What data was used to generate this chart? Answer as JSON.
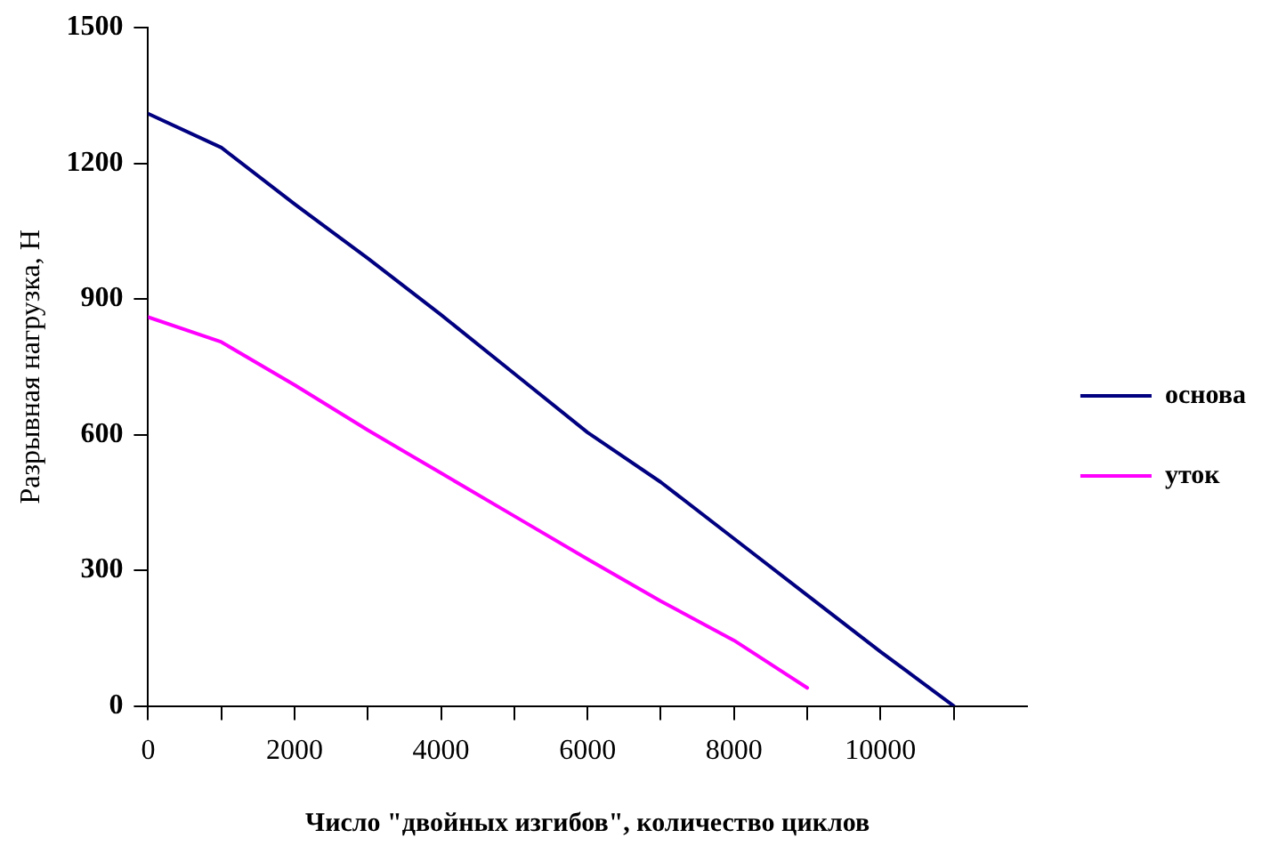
{
  "chart_data": {
    "type": "line",
    "xlabel": "Число \"двойных изгибов\", количество циклов",
    "ylabel": "Разрывная нагрузка, Н",
    "series": [
      {
        "name": "основа",
        "color": "#000080",
        "x": [
          0,
          1000,
          2000,
          3000,
          4000,
          5000,
          6000,
          7000,
          8000,
          9000,
          10000,
          11000
        ],
        "values": [
          1310,
          1235,
          1110,
          990,
          865,
          735,
          605,
          495,
          370,
          245,
          120,
          0
        ]
      },
      {
        "name": "уток",
        "color": "#ff00ff",
        "x": [
          0,
          1000,
          2000,
          3000,
          4000,
          5000,
          6000,
          7000,
          8000,
          9000
        ],
        "values": [
          860,
          805,
          710,
          610,
          515,
          420,
          325,
          232,
          145,
          40
        ]
      }
    ],
    "xlim": [
      0,
      12000
    ],
    "xticks": [
      0,
      {
        "value": 1000,
        "label": null
      },
      2000,
      {
        "value": 3000,
        "label": null
      },
      4000,
      {
        "value": 5000,
        "label": null
      },
      6000,
      {
        "value": 7000,
        "label": null
      },
      8000,
      {
        "value": 9000,
        "label": null
      },
      10000,
      {
        "value": 11000,
        "label": null
      }
    ],
    "ylim": [
      0,
      1500
    ],
    "yticks": [
      0,
      300,
      600,
      900,
      1200,
      1500
    ],
    "grid": false,
    "legend": "right",
    "marker": "none",
    "line_style": "solid"
  }
}
